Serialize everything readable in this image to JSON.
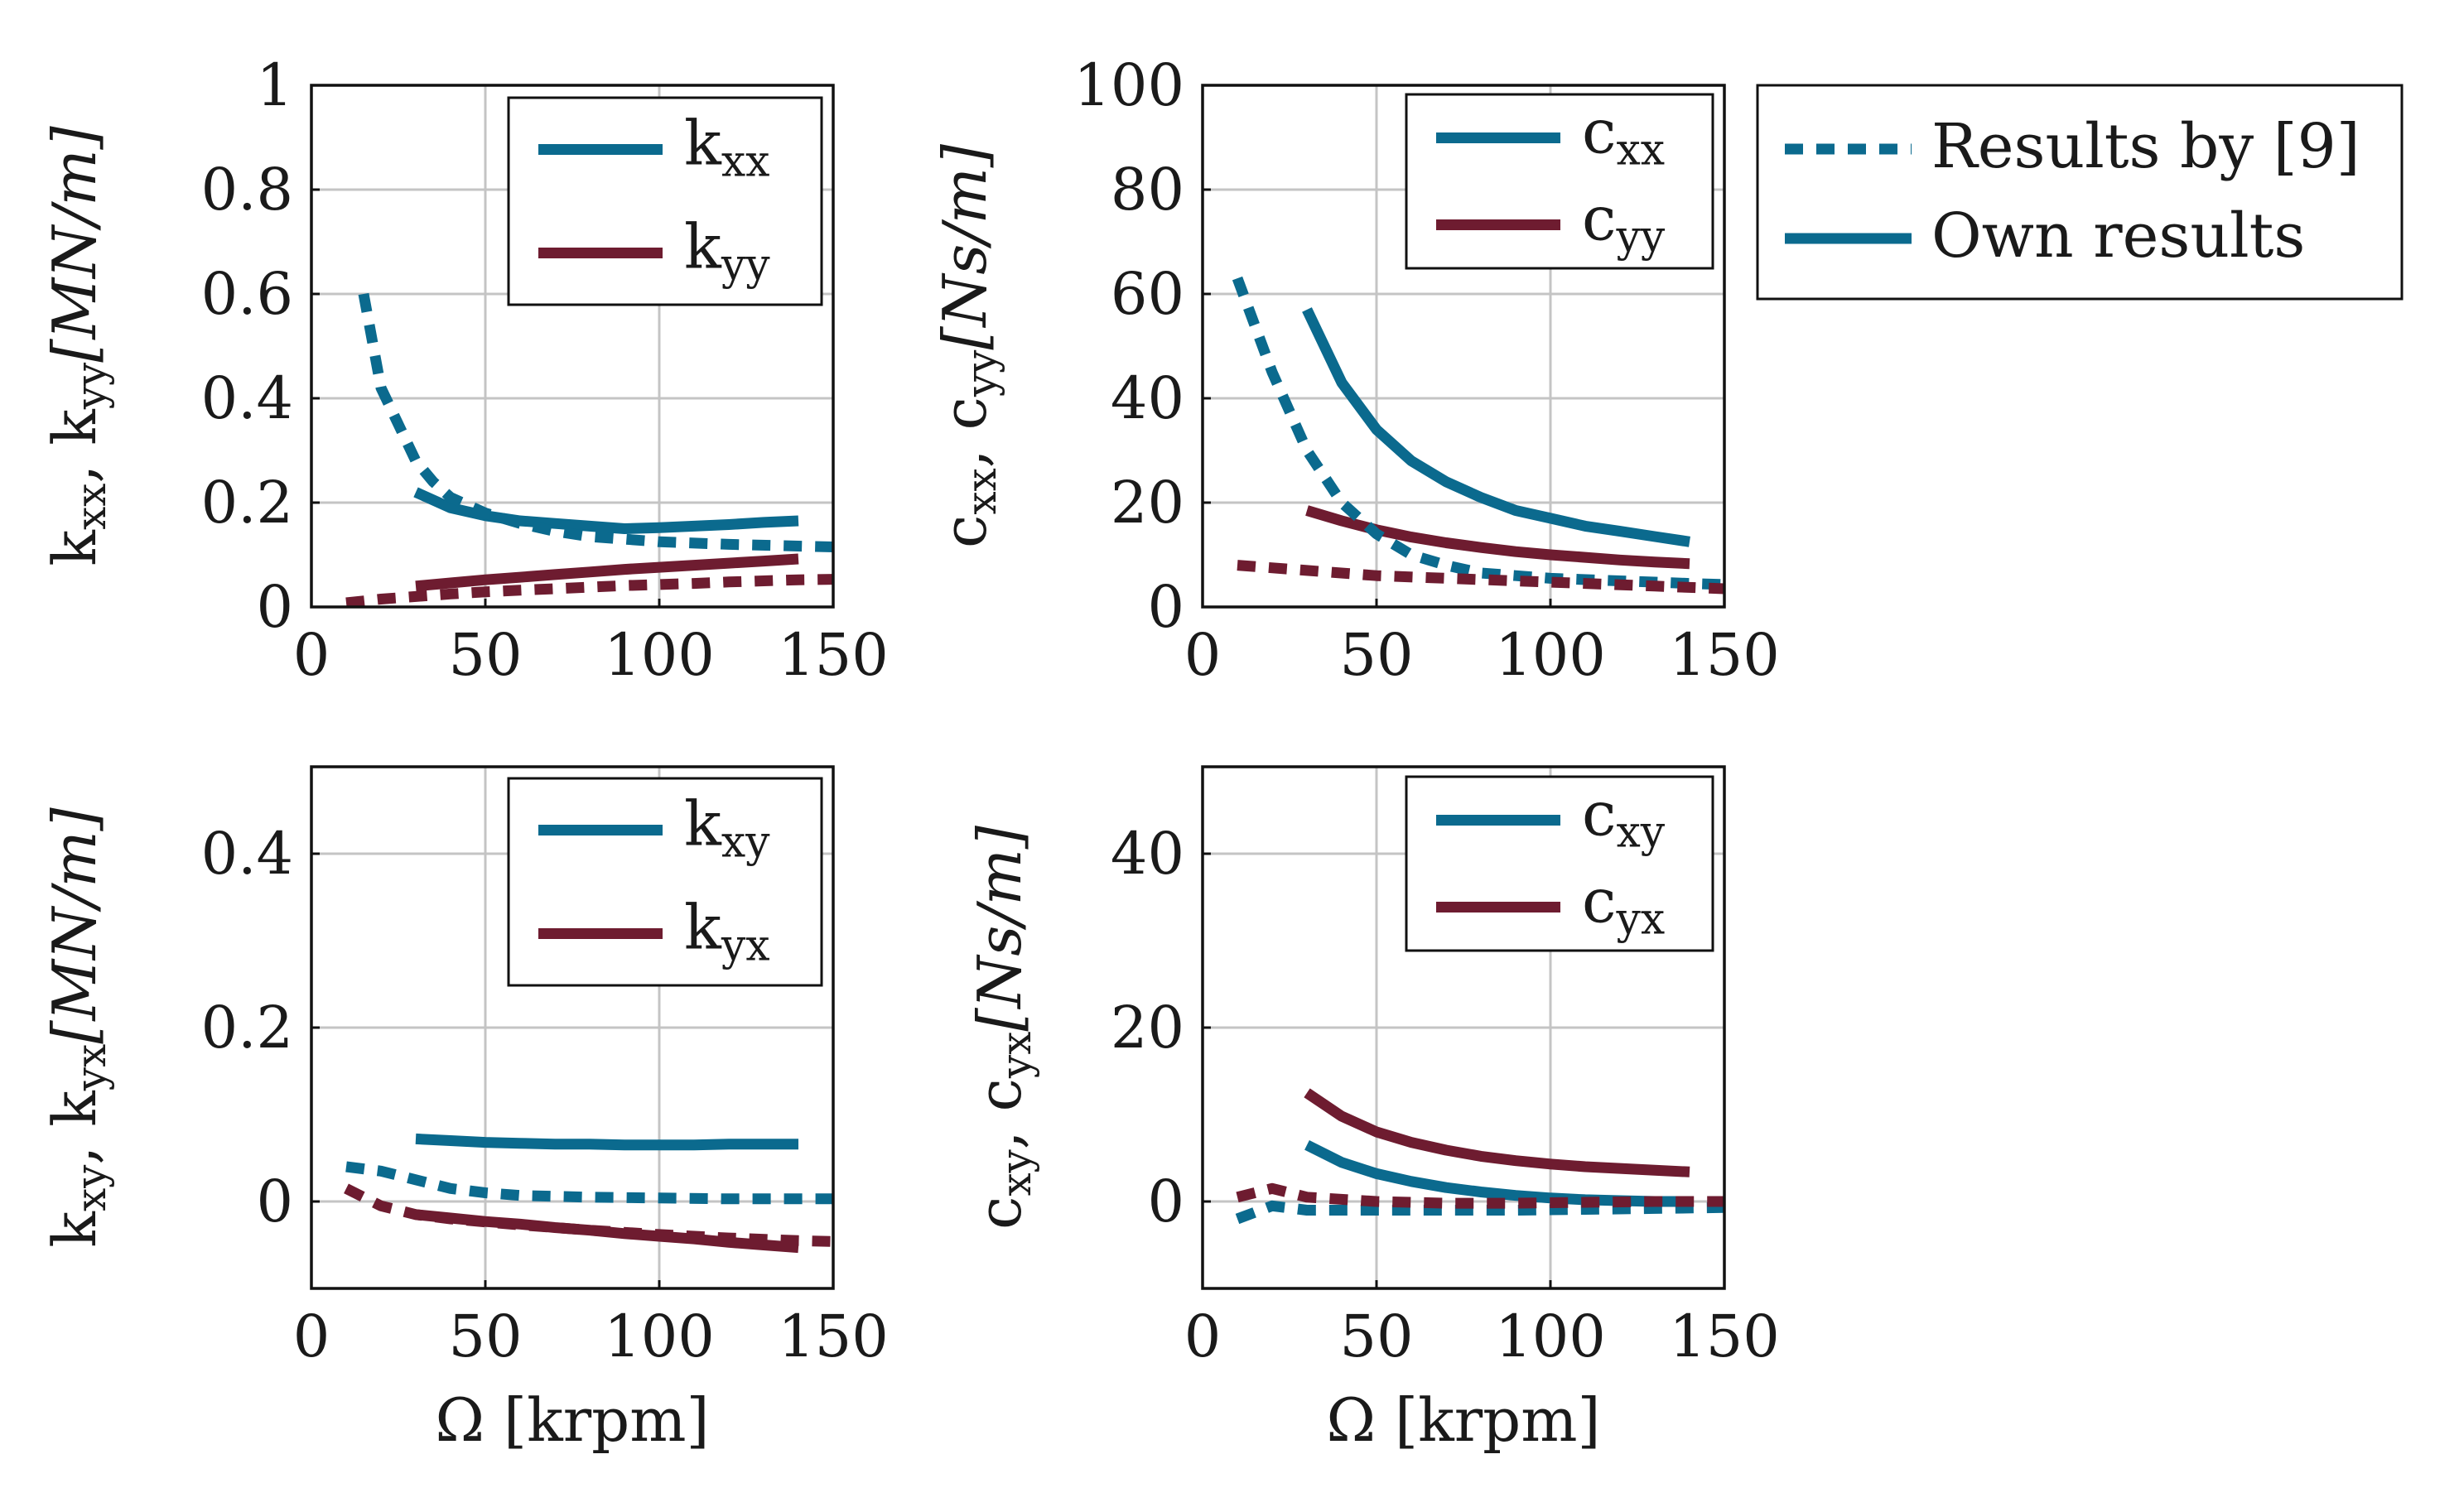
{
  "colors": {
    "blue": "#0b6a8e",
    "red": "#6e1c30"
  },
  "legend_global": {
    "items": [
      {
        "label": "Results by [9]",
        "style": "dashed"
      },
      {
        "label": "Own results",
        "style": "solid"
      }
    ]
  },
  "chart_data": [
    {
      "type": "line",
      "id": "kdirect",
      "ylabel": "k_xx, k_yy [MN/m]",
      "ylabel_parts": [
        "k",
        "xx",
        ", k",
        "yy",
        "[MN/m]"
      ],
      "xlabel": "",
      "xlim": [
        0,
        150
      ],
      "ylim": [
        0,
        1
      ],
      "xticks": [
        0,
        50,
        100,
        150
      ],
      "yticks": [
        0,
        0.2,
        0.4,
        0.6,
        0.8,
        1
      ],
      "ytick_labels": [
        "0",
        "0.2",
        "0.4",
        "0.6",
        "0.8",
        "1"
      ],
      "legend": [
        {
          "base": "k",
          "sub": "xx",
          "color": "blue"
        },
        {
          "base": "k",
          "sub": "yy",
          "color": "red"
        }
      ],
      "series": [
        {
          "name": "k_xx own results",
          "color": "blue",
          "style": "solid",
          "x": [
            30,
            40,
            50,
            60,
            70,
            80,
            90,
            100,
            110,
            120,
            130,
            140
          ],
          "y": [
            0.22,
            0.19,
            0.175,
            0.165,
            0.16,
            0.155,
            0.15,
            0.152,
            0.155,
            0.158,
            0.162,
            0.165
          ]
        },
        {
          "name": "k_yy own results",
          "color": "red",
          "style": "solid",
          "x": [
            30,
            40,
            50,
            60,
            70,
            80,
            90,
            100,
            110,
            120,
            130,
            140
          ],
          "y": [
            0.04,
            0.046,
            0.052,
            0.057,
            0.062,
            0.067,
            0.072,
            0.076,
            0.08,
            0.084,
            0.088,
            0.092
          ]
        },
        {
          "name": "k_xx results by [9]",
          "color": "blue",
          "style": "dashed",
          "x": [
            15,
            20,
            25,
            30,
            35,
            40,
            50,
            60,
            70,
            80,
            90,
            100,
            120,
            150
          ],
          "y": [
            0.6,
            0.42,
            0.35,
            0.28,
            0.24,
            0.21,
            0.18,
            0.16,
            0.145,
            0.135,
            0.13,
            0.125,
            0.12,
            0.115
          ]
        },
        {
          "name": "k_yy results by [9]",
          "color": "red",
          "style": "dashed",
          "x": [
            10,
            20,
            30,
            40,
            50,
            60,
            70,
            80,
            90,
            100,
            110,
            120,
            130,
            140,
            150
          ],
          "y": [
            0.008,
            0.015,
            0.02,
            0.025,
            0.029,
            0.032,
            0.035,
            0.038,
            0.041,
            0.043,
            0.045,
            0.048,
            0.05,
            0.052,
            0.053
          ]
        }
      ]
    },
    {
      "type": "line",
      "id": "cdirect",
      "ylabel": "c_xx, c_yy [Ns/m]",
      "ylabel_parts": [
        "c",
        "xx",
        ", c",
        "yy",
        "[Ns/m]"
      ],
      "xlabel": "",
      "xlim": [
        0,
        150
      ],
      "ylim": [
        0,
        100
      ],
      "xticks": [
        0,
        50,
        100,
        150
      ],
      "yticks": [
        0,
        20,
        40,
        60,
        80,
        100
      ],
      "ytick_labels": [
        "0",
        "20",
        "40",
        "60",
        "80",
        "100"
      ],
      "legend": [
        {
          "base": "c",
          "sub": "xx",
          "color": "blue"
        },
        {
          "base": "c",
          "sub": "yy",
          "color": "red"
        }
      ],
      "series": [
        {
          "name": "c_xx own results",
          "color": "blue",
          "style": "solid",
          "x": [
            30,
            40,
            50,
            60,
            70,
            80,
            90,
            100,
            110,
            120,
            130,
            140
          ],
          "y": [
            57,
            43,
            34,
            28,
            24,
            21,
            18.5,
            17,
            15.5,
            14.5,
            13.5,
            12.5
          ]
        },
        {
          "name": "c_yy own results",
          "color": "red",
          "style": "solid",
          "x": [
            30,
            40,
            50,
            60,
            70,
            80,
            90,
            100,
            110,
            120,
            130,
            140
          ],
          "y": [
            18.5,
            16.5,
            14.8,
            13.4,
            12.3,
            11.4,
            10.6,
            10,
            9.5,
            9,
            8.6,
            8.3
          ]
        },
        {
          "name": "c_xx results by [9]",
          "color": "blue",
          "style": "dashed",
          "x": [
            10,
            20,
            30,
            40,
            50,
            60,
            70,
            80,
            90,
            100,
            120,
            140,
            150
          ],
          "y": [
            63,
            45,
            30,
            20,
            14,
            10,
            8,
            6.5,
            6,
            5.5,
            5,
            4.5,
            4.3
          ]
        },
        {
          "name": "c_yy results by [9]",
          "color": "red",
          "style": "dashed",
          "x": [
            10,
            30,
            50,
            70,
            90,
            110,
            130,
            150
          ],
          "y": [
            8,
            7,
            6,
            5.5,
            5,
            4.5,
            4,
            3.5
          ]
        }
      ]
    },
    {
      "type": "line",
      "id": "kcross",
      "ylabel": "k_xy, k_yx [MN/m]",
      "ylabel_parts": [
        "k",
        "xy",
        ", k",
        "yx",
        "[MN/m]"
      ],
      "xlabel": "Ω [krpm]",
      "xlim": [
        0,
        150
      ],
      "ylim": [
        -0.1,
        0.5
      ],
      "xticks": [
        0,
        50,
        100,
        150
      ],
      "yticks": [
        0,
        0.2,
        0.4
      ],
      "ytick_labels": [
        "0",
        "0.2",
        "0.4"
      ],
      "legend": [
        {
          "base": "k",
          "sub": "xy",
          "color": "blue"
        },
        {
          "base": "k",
          "sub": "yx",
          "color": "red"
        }
      ],
      "series": [
        {
          "name": "k_xy own results",
          "color": "blue",
          "style": "solid",
          "x": [
            30,
            40,
            50,
            60,
            70,
            80,
            90,
            100,
            110,
            120,
            130,
            140
          ],
          "y": [
            0.072,
            0.07,
            0.068,
            0.067,
            0.066,
            0.066,
            0.065,
            0.065,
            0.065,
            0.066,
            0.066,
            0.066
          ]
        },
        {
          "name": "k_yx own results",
          "color": "red",
          "style": "solid",
          "x": [
            30,
            40,
            50,
            60,
            70,
            80,
            90,
            100,
            110,
            120,
            130,
            140
          ],
          "y": [
            -0.015,
            -0.019,
            -0.023,
            -0.026,
            -0.03,
            -0.033,
            -0.037,
            -0.04,
            -0.043,
            -0.047,
            -0.05,
            -0.053
          ]
        },
        {
          "name": "k_xy results by [9]",
          "color": "blue",
          "style": "dashed",
          "x": [
            10,
            20,
            30,
            40,
            50,
            60,
            80,
            100,
            120,
            150
          ],
          "y": [
            0.04,
            0.035,
            0.025,
            0.015,
            0.01,
            0.007,
            0.005,
            0.004,
            0.003,
            0.003
          ]
        },
        {
          "name": "k_yx results by [9]",
          "color": "red",
          "style": "dashed",
          "x": [
            10,
            20,
            30,
            40,
            60,
            80,
            100,
            120,
            140,
            150
          ],
          "y": [
            0.015,
            -0.005,
            -0.015,
            -0.02,
            -0.027,
            -0.033,
            -0.038,
            -0.042,
            -0.045,
            -0.046
          ]
        }
      ]
    },
    {
      "type": "line",
      "id": "ccross",
      "ylabel": "c_xy, c_yx [Ns/m]",
      "ylabel_parts": [
        "c",
        "xy",
        ", c",
        "yx",
        "[Ns/m]"
      ],
      "xlabel": "Ω [krpm]",
      "xlim": [
        0,
        150
      ],
      "ylim": [
        -10,
        50
      ],
      "xticks": [
        0,
        50,
        100,
        150
      ],
      "yticks": [
        0,
        20,
        40
      ],
      "ytick_labels": [
        "0",
        "20",
        "40"
      ],
      "legend": [
        {
          "base": "c",
          "sub": "xy",
          "color": "blue"
        },
        {
          "base": "c",
          "sub": "yx",
          "color": "red"
        }
      ],
      "series": [
        {
          "name": "c_xy own results",
          "color": "blue",
          "style": "solid",
          "x": [
            30,
            40,
            50,
            60,
            70,
            80,
            90,
            100,
            110,
            120,
            130,
            140
          ],
          "y": [
            6.5,
            4.5,
            3.2,
            2.3,
            1.6,
            1.1,
            0.7,
            0.4,
            0.2,
            0.1,
            0,
            0
          ]
        },
        {
          "name": "c_yx own results",
          "color": "red",
          "style": "solid",
          "x": [
            30,
            40,
            50,
            60,
            70,
            80,
            90,
            100,
            110,
            120,
            130,
            140
          ],
          "y": [
            12.5,
            9.8,
            8,
            6.8,
            5.9,
            5.2,
            4.7,
            4.3,
            4,
            3.8,
            3.6,
            3.4
          ]
        },
        {
          "name": "c_xy results by [9]",
          "color": "blue",
          "style": "dashed",
          "x": [
            10,
            20,
            30,
            50,
            70,
            90,
            110,
            130,
            150
          ],
          "y": [
            -2,
            -0.5,
            -1,
            -1,
            -1,
            -1,
            -0.9,
            -0.8,
            -0.7
          ]
        },
        {
          "name": "c_yx results by [9]",
          "color": "red",
          "style": "dashed",
          "x": [
            10,
            20,
            30,
            50,
            70,
            90,
            110,
            130,
            150
          ],
          "y": [
            0.5,
            1.5,
            0.5,
            0,
            -0.2,
            -0.2,
            -0.1,
            0,
            0
          ]
        }
      ]
    }
  ]
}
